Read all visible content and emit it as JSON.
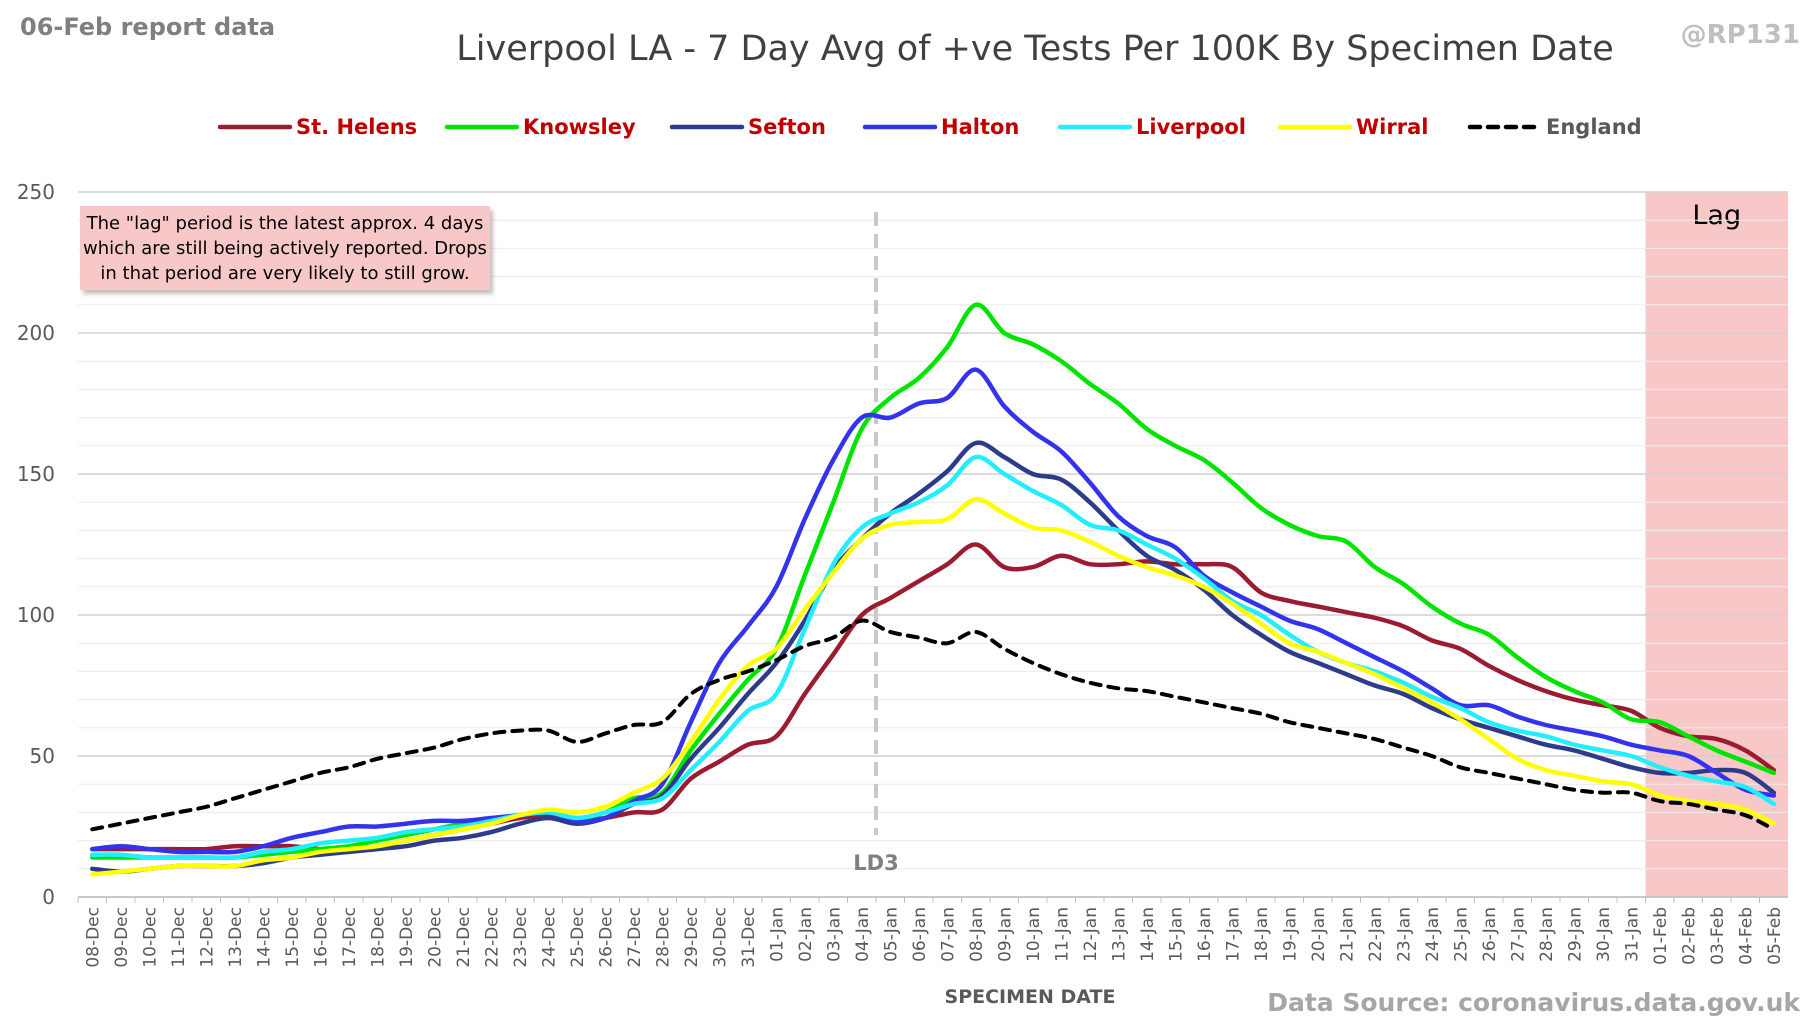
{
  "header": {
    "report_label": "06-Feb report data",
    "handle": "@RP131",
    "title": "Liverpool LA - 7 Day Avg of +ve Tests Per 100K By Specimen Date"
  },
  "footer": {
    "source": "Data Source: coronavirus.data.gov.uk"
  },
  "annotation": {
    "lines": [
      "The \"lag\" period is the latest approx. 4 days",
      "which are still being actively reported.  Drops",
      "in that period are very likely to still grow."
    ]
  },
  "chart_data": {
    "type": "line",
    "title": "Liverpool LA - 7 Day Avg of +ve Tests Per 100K By Specimen Date",
    "xlabel": "SPECIMEN DATE",
    "ylabel": "",
    "ylim": [
      0,
      250
    ],
    "yticks": [
      0,
      50,
      100,
      150,
      200,
      250
    ],
    "grid": true,
    "legend_position": "top",
    "categories": [
      "08-Dec",
      "09-Dec",
      "10-Dec",
      "11-Dec",
      "12-Dec",
      "13-Dec",
      "14-Dec",
      "15-Dec",
      "16-Dec",
      "17-Dec",
      "18-Dec",
      "19-Dec",
      "20-Dec",
      "21-Dec",
      "22-Dec",
      "23-Dec",
      "24-Dec",
      "25-Dec",
      "26-Dec",
      "27-Dec",
      "28-Dec",
      "29-Dec",
      "30-Dec",
      "31-Dec",
      "01-Jan",
      "02-Jan",
      "03-Jan",
      "04-Jan",
      "05-Jan",
      "06-Jan",
      "07-Jan",
      "08-Jan",
      "09-Jan",
      "10-Jan",
      "11-Jan",
      "12-Jan",
      "13-Jan",
      "14-Jan",
      "15-Jan",
      "16-Jan",
      "17-Jan",
      "18-Jan",
      "19-Jan",
      "20-Jan",
      "21-Jan",
      "22-Jan",
      "23-Jan",
      "24-Jan",
      "25-Jan",
      "26-Jan",
      "27-Jan",
      "28-Jan",
      "29-Jan",
      "30-Jan",
      "31-Jan",
      "01-Feb",
      "02-Feb",
      "03-Feb",
      "04-Feb",
      "05-Feb"
    ],
    "series": [
      {
        "name": "St. Helens",
        "color": "#9b1c31",
        "dash": false,
        "values": [
          17,
          17,
          17,
          17,
          17,
          18,
          18,
          18,
          17,
          17,
          18,
          20,
          22,
          24,
          26,
          28,
          29,
          27,
          28,
          30,
          31,
          42,
          48,
          54,
          57,
          72,
          86,
          100,
          106,
          112,
          118,
          125,
          117,
          117,
          121,
          118,
          118,
          119,
          118,
          118,
          117,
          108,
          105,
          103,
          101,
          99,
          96,
          91,
          88,
          82,
          77,
          73,
          70,
          68,
          66,
          60,
          57,
          56,
          52,
          45
        ]
      },
      {
        "name": "Knowsley",
        "color": "#00e400",
        "dash": false,
        "values": [
          14,
          14,
          14,
          14,
          14,
          14,
          15,
          16,
          17,
          18,
          20,
          22,
          24,
          26,
          27,
          29,
          30,
          28,
          30,
          35,
          37,
          52,
          65,
          77,
          88,
          114,
          140,
          166,
          177,
          184,
          195,
          210,
          200,
          196,
          190,
          182,
          175,
          166,
          160,
          155,
          147,
          138,
          132,
          128,
          126,
          117,
          111,
          103,
          97,
          93,
          85,
          78,
          73,
          69,
          63,
          62,
          57,
          52,
          48,
          44
        ]
      },
      {
        "name": "Sefton",
        "color": "#2e3b8a",
        "dash": false,
        "values": [
          10,
          9,
          10,
          11,
          11,
          11,
          12,
          14,
          15,
          16,
          17,
          18,
          20,
          21,
          23,
          26,
          28,
          26,
          28,
          33,
          36,
          49,
          60,
          72,
          83,
          98,
          116,
          127,
          136,
          143,
          151,
          161,
          156,
          150,
          148,
          140,
          130,
          121,
          116,
          109,
          100,
          93,
          87,
          83,
          79,
          75,
          72,
          67,
          63,
          60,
          57,
          54,
          52,
          49,
          46,
          44,
          44,
          45,
          44,
          37
        ]
      },
      {
        "name": "Halton",
        "color": "#3333ee",
        "dash": false,
        "values": [
          17,
          18,
          17,
          16,
          16,
          16,
          18,
          21,
          23,
          25,
          25,
          26,
          27,
          27,
          28,
          29,
          30,
          27,
          28,
          34,
          40,
          62,
          83,
          96,
          110,
          134,
          155,
          170,
          170,
          175,
          177,
          187,
          174,
          165,
          158,
          147,
          135,
          128,
          124,
          114,
          108,
          103,
          98,
          95,
          90,
          85,
          80,
          74,
          68,
          68,
          64,
          61,
          59,
          57,
          54,
          52,
          50,
          44,
          38,
          36
        ]
      },
      {
        "name": "Liverpool",
        "color": "#22eeff",
        "dash": false,
        "values": [
          15,
          15,
          14,
          14,
          14,
          14,
          16,
          17,
          19,
          20,
          21,
          23,
          24,
          25,
          27,
          29,
          30,
          28,
          30,
          33,
          35,
          45,
          55,
          66,
          72,
          95,
          118,
          131,
          136,
          140,
          146,
          156,
          150,
          144,
          139,
          132,
          130,
          125,
          120,
          113,
          105,
          100,
          93,
          87,
          83,
          80,
          76,
          71,
          67,
          62,
          59,
          57,
          54,
          52,
          50,
          46,
          43,
          41,
          39,
          33
        ]
      },
      {
        "name": "Wirral",
        "color": "#ffff00",
        "dash": false,
        "values": [
          8,
          9,
          10,
          11,
          11,
          11,
          13,
          14,
          16,
          17,
          18,
          20,
          22,
          24,
          26,
          29,
          31,
          30,
          32,
          37,
          42,
          55,
          70,
          82,
          88,
          102,
          115,
          127,
          132,
          133,
          134,
          141,
          136,
          131,
          130,
          126,
          121,
          117,
          114,
          110,
          104,
          97,
          90,
          87,
          83,
          79,
          74,
          69,
          63,
          56,
          49,
          45,
          43,
          41,
          40,
          36,
          34,
          33,
          31,
          26
        ]
      },
      {
        "name": "England",
        "color": "#000000",
        "dash": true,
        "values": [
          24,
          26,
          28,
          30,
          32,
          35,
          38,
          41,
          44,
          46,
          49,
          51,
          53,
          56,
          58,
          59,
          59,
          55,
          58,
          61,
          62,
          72,
          77,
          80,
          84,
          89,
          92,
          98,
          94,
          92,
          90,
          94,
          88,
          83,
          79,
          76,
          74,
          73,
          71,
          69,
          67,
          65,
          62,
          60,
          58,
          56,
          53,
          50,
          46,
          44,
          42,
          40,
          38,
          37,
          37,
          34,
          33,
          31,
          29,
          24
        ]
      }
    ],
    "lag_region": {
      "start": "01-Feb",
      "end": "05-Feb",
      "label": "Lag",
      "color": "#f8c8c8"
    },
    "vline": {
      "at": "05-Jan",
      "label": "LD3"
    }
  }
}
